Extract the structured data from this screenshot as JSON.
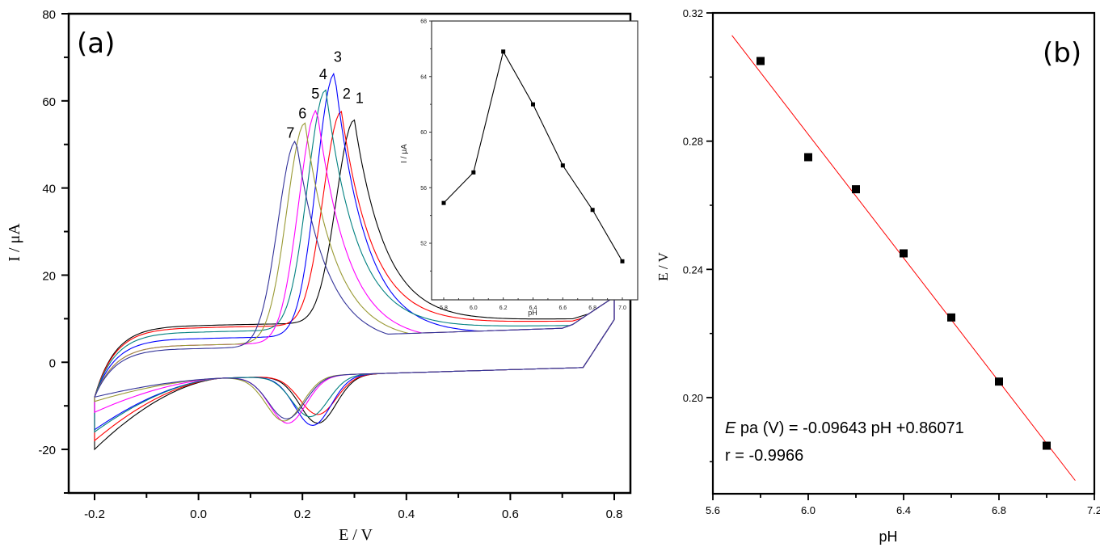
{
  "chart_data": [
    {
      "panel": "a",
      "type": "line",
      "panel_label": "(a)",
      "title": "",
      "xlabel": "E / V",
      "ylabel": "I / μA",
      "xlim": [
        -0.25,
        0.85
      ],
      "ylim": [
        -30,
        80
      ],
      "xticks": [
        -0.2,
        0.0,
        0.2,
        0.4,
        0.6,
        0.8
      ],
      "xtick_labels": [
        "-0.2",
        "0.0",
        "0.2",
        "0.4",
        "0.6",
        "0.8"
      ],
      "yticks": [
        -20,
        0,
        20,
        40,
        60,
        80
      ],
      "ytick_labels": [
        "-20",
        "0",
        "20",
        "40",
        "60",
        "80"
      ],
      "grid": false,
      "series": [
        {
          "name": "1",
          "color": "#000000",
          "peak_E": 0.3,
          "peak_I": 55.0,
          "cathodic_E": 0.23,
          "cathodic_I": -14.0,
          "fwd_base": 8.5,
          "rev_low": -24.0
        },
        {
          "name": "2",
          "color": "#ff0000",
          "peak_E": 0.275,
          "peak_I": 57.0,
          "cathodic_E": 0.23,
          "cathodic_I": -12.0,
          "fwd_base": 8.0,
          "rev_low": -22.0
        },
        {
          "name": "3",
          "color": "#0000ff",
          "peak_E": 0.262,
          "peak_I": 65.8,
          "cathodic_E": 0.22,
          "cathodic_I": -14.5,
          "fwd_base": 5.5,
          "rev_low": -19.5
        },
        {
          "name": "4",
          "color": "#008080",
          "peak_E": 0.245,
          "peak_I": 62.0,
          "cathodic_E": 0.215,
          "cathodic_I": -12.5,
          "fwd_base": 7.0,
          "rev_low": -20.0
        },
        {
          "name": "5",
          "color": "#ff00ff",
          "peak_E": 0.228,
          "peak_I": 57.5,
          "cathodic_E": 0.172,
          "cathodic_I": -14.0,
          "fwd_base": 4.0,
          "rev_low": -15.5
        },
        {
          "name": "6",
          "color": "#999933",
          "peak_E": 0.205,
          "peak_I": 54.5,
          "cathodic_E": 0.165,
          "cathodic_I": -13.5,
          "fwd_base": 4.0,
          "rev_low": -13.0
        },
        {
          "name": "7",
          "color": "#333399",
          "peak_E": 0.188,
          "peak_I": 50.5,
          "cathodic_E": 0.17,
          "cathodic_I": -13.0,
          "fwd_base": 3.2,
          "rev_low": -12.0
        }
      ],
      "curve_labels": [
        {
          "text": "1",
          "E": 0.31,
          "I": 59.5
        },
        {
          "text": "2",
          "E": 0.285,
          "I": 60.5
        },
        {
          "text": "3",
          "E": 0.268,
          "I": 69.0
        },
        {
          "text": "4",
          "E": 0.24,
          "I": 65.0
        },
        {
          "text": "5",
          "E": 0.225,
          "I": 60.5
        },
        {
          "text": "6",
          "E": 0.2,
          "I": 56.0
        },
        {
          "text": "7",
          "E": 0.177,
          "I": 51.5
        }
      ],
      "inset": {
        "type": "line",
        "xlabel": "pH",
        "ylabel": "I / μA",
        "xlim": [
          5.7,
          7.1
        ],
        "ylim": [
          49,
          68
        ],
        "xticks": [
          5.8,
          6.0,
          6.2,
          6.4,
          6.6,
          6.8,
          7.0
        ],
        "xtick_labels": [
          "5.8",
          "6.0",
          "6.2",
          "6.4",
          "6.6",
          "6.8",
          "7.0"
        ],
        "yticks": [
          52,
          56,
          60,
          64,
          68
        ],
        "ytick_labels": [
          "52",
          "56",
          "60",
          "64",
          "68"
        ],
        "x": [
          5.8,
          6.0,
          6.2,
          6.4,
          6.6,
          6.8,
          7.0
        ],
        "y": [
          54.9,
          57.1,
          65.8,
          62.0,
          57.6,
          54.4,
          50.7
        ],
        "marker": "square",
        "color": "#000000"
      }
    },
    {
      "panel": "b",
      "type": "scatter",
      "panel_label": "(b)",
      "title": "",
      "xlabel": "pH",
      "ylabel": "E / V",
      "xlim": [
        5.6,
        7.2
      ],
      "ylim": [
        0.17,
        0.32
      ],
      "xticks": [
        5.6,
        6.0,
        6.4,
        6.8,
        7.2
      ],
      "xtick_labels": [
        "5.6",
        "6.0",
        "6.4",
        "6.8",
        "7.2"
      ],
      "yticks": [
        0.2,
        0.24,
        0.28,
        0.32
      ],
      "ytick_labels": [
        "0.20",
        "0.24",
        "0.28",
        "0.32"
      ],
      "grid": false,
      "x": [
        5.8,
        6.0,
        6.2,
        6.4,
        6.6,
        6.8,
        7.0
      ],
      "y": [
        0.305,
        0.275,
        0.265,
        0.245,
        0.225,
        0.205,
        0.185
      ],
      "marker": "square",
      "marker_color": "#000000",
      "fit": {
        "slope": -0.09643,
        "intercept": 0.86071,
        "x_range": [
          5.68,
          7.12
        ],
        "color": "#ff0000"
      },
      "annotation": {
        "eq_italic": "E",
        "eq_rest": " pa (V) = -0.09643 pH +0.86071",
        "r_text": "r = -0.9966"
      }
    }
  ]
}
